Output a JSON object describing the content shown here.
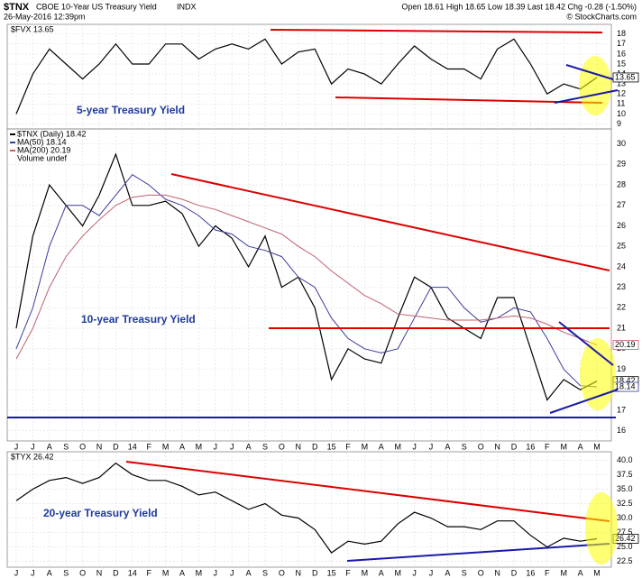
{
  "header": {
    "symbol": "$TNX",
    "name": "CBOE 10-Year US Treasury Yield",
    "exchange": "INDX",
    "date": "26-May-2016 12:39pm",
    "quote": "Open 18.61 High 18.65 Low 18.39 Last 18.42 Chg -0.28 (-1.50%)",
    "credit": "© StockCharts.com"
  },
  "chart_data": [
    {
      "type": "line",
      "legend_label": "$FVX 13.65",
      "annotation": "5-year Treasury Yield",
      "xaxis_labels": false,
      "grid": true,
      "categories": [
        "J",
        "J",
        "A",
        "S",
        "O",
        "N",
        "D",
        "14",
        "F",
        "M",
        "A",
        "M",
        "J",
        "J",
        "A",
        "S",
        "O",
        "N",
        "D",
        "15",
        "F",
        "M",
        "A",
        "M",
        "J",
        "J",
        "A",
        "S",
        "O",
        "N",
        "D",
        "16",
        "F",
        "M",
        "A",
        "M"
      ],
      "series": [
        {
          "name": "$FVX",
          "color": "#000000",
          "values": [
            10,
            14,
            16.5,
            15,
            13.5,
            15,
            17,
            15,
            15,
            17,
            17,
            15.5,
            16.5,
            17,
            16.5,
            17.5,
            15,
            16.2,
            16.5,
            13,
            14.5,
            14,
            13,
            15,
            16.8,
            15.5,
            14.5,
            14.5,
            13.5,
            16.5,
            17.5,
            15,
            12,
            13,
            12.5,
            13.65
          ]
        }
      ],
      "ylim": [
        8.5,
        18.7
      ],
      "yticks": [
        9,
        10,
        11,
        12,
        13,
        14,
        15,
        16,
        17,
        18
      ]
    },
    {
      "type": "line",
      "annotation": "10-year Treasury Yield",
      "legend_extra": "Volume undef",
      "xaxis_labels": true,
      "grid": true,
      "categories": [
        "J",
        "J",
        "A",
        "S",
        "O",
        "N",
        "D",
        "14",
        "F",
        "M",
        "A",
        "M",
        "J",
        "J",
        "A",
        "S",
        "O",
        "N",
        "D",
        "15",
        "F",
        "M",
        "A",
        "M",
        "J",
        "J",
        "A",
        "S",
        "O",
        "N",
        "D",
        "16",
        "F",
        "M",
        "A",
        "M"
      ],
      "series": [
        {
          "name": "$TNX (Daily) 18.42",
          "color": "#000000",
          "values": [
            21,
            25.5,
            28,
            27,
            26,
            27.5,
            29.5,
            27,
            27,
            27.2,
            26.6,
            25,
            26,
            25.4,
            24,
            25.5,
            23,
            23.5,
            22,
            18.5,
            20,
            19.5,
            19.3,
            21.5,
            23.5,
            23,
            21.5,
            21,
            20.5,
            22.5,
            22.5,
            20,
            17.5,
            18.5,
            18,
            18.42
          ]
        },
        {
          "name": "MA(50) 18.14",
          "color": "#3b3b9e",
          "values": [
            20,
            22,
            25,
            27,
            27,
            26.5,
            27.5,
            28.5,
            28,
            27.3,
            27,
            26.5,
            25.8,
            25.6,
            25,
            24.8,
            24.5,
            23.5,
            23,
            21.5,
            20.5,
            20,
            19.8,
            20,
            21.5,
            23,
            23,
            22,
            21.3,
            21.5,
            22,
            21.8,
            20.5,
            19,
            18.2,
            18.14
          ]
        },
        {
          "name": "MA(200) 20.19",
          "color": "#c0606e",
          "values": [
            19.5,
            21,
            23,
            24.5,
            25.5,
            26.3,
            27,
            27.4,
            27.5,
            27.5,
            27.3,
            27,
            26.8,
            26.5,
            26.2,
            25.9,
            25.6,
            25,
            24.5,
            23.8,
            23.2,
            22.6,
            22.2,
            21.7,
            21.6,
            21.5,
            21.4,
            21.4,
            21.4,
            21.5,
            21.6,
            21.5,
            21.2,
            20.8,
            20.5,
            20.19
          ]
        }
      ],
      "ylim": [
        15.5,
        30.6
      ],
      "yticks": [
        16,
        17,
        18,
        19,
        20,
        21,
        22,
        23,
        24,
        25,
        26,
        27,
        28,
        29,
        30
      ]
    },
    {
      "type": "line",
      "legend_label": "$TYX 26.42",
      "annotation": "20-year Treasury Yield",
      "xaxis_labels": true,
      "grid": true,
      "categories": [
        "J",
        "J",
        "A",
        "S",
        "O",
        "N",
        "D",
        "14",
        "F",
        "M",
        "A",
        "M",
        "J",
        "J",
        "A",
        "S",
        "O",
        "N",
        "D",
        "15",
        "F",
        "M",
        "A",
        "M",
        "J",
        "J",
        "A",
        "S",
        "O",
        "N",
        "D",
        "16",
        "F",
        "M",
        "A",
        "M"
      ],
      "series": [
        {
          "name": "$TYX",
          "color": "#000000",
          "values": [
            33,
            35,
            36.5,
            37,
            36,
            37,
            39.5,
            37.5,
            36.5,
            36.5,
            35.5,
            34,
            34.5,
            33,
            31.5,
            32.5,
            30.5,
            30,
            28,
            24,
            26,
            25.5,
            26,
            29,
            31,
            30,
            28.5,
            28.5,
            28,
            29.5,
            29.5,
            27,
            25,
            26.5,
            26,
            26.42
          ]
        }
      ],
      "ylim": [
        21.5,
        41
      ],
      "yticks": [
        22.5,
        {
          "value": 25,
          "label": "25.0"
        },
        27.5,
        {
          "value": 30,
          "label": "30.0"
        },
        32.5,
        {
          "value": 35,
          "label": "35.0"
        },
        37.5,
        {
          "value": 40,
          "label": "40.0"
        }
      ]
    }
  ]
}
